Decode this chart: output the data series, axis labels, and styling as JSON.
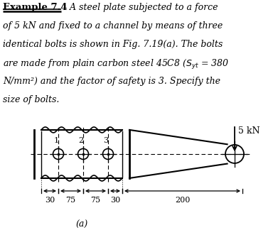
{
  "bg_color": "#ffffff",
  "line_color": "#000000",
  "fig_label": "(a)",
  "force_label": "5 kN",
  "bolt_labels": [
    "1",
    "2",
    "3"
  ],
  "dim_labels": [
    "30",
    "75",
    "75",
    "30",
    "200"
  ],
  "text_lines": [
    "of 5 kN and fixed to a channel by means of three",
    "identical bolts is shown in Fig. 7.19(a). The bolts",
    "are made from plain carbon steel 45C8 ($S_{yt}$ = 380",
    "N/mm²) and the factor of safety is 3. Specify the",
    "size of bolts."
  ],
  "title_bold": "Example 7.4",
  "title_italic_first": "  A steel plate subjected to a force"
}
